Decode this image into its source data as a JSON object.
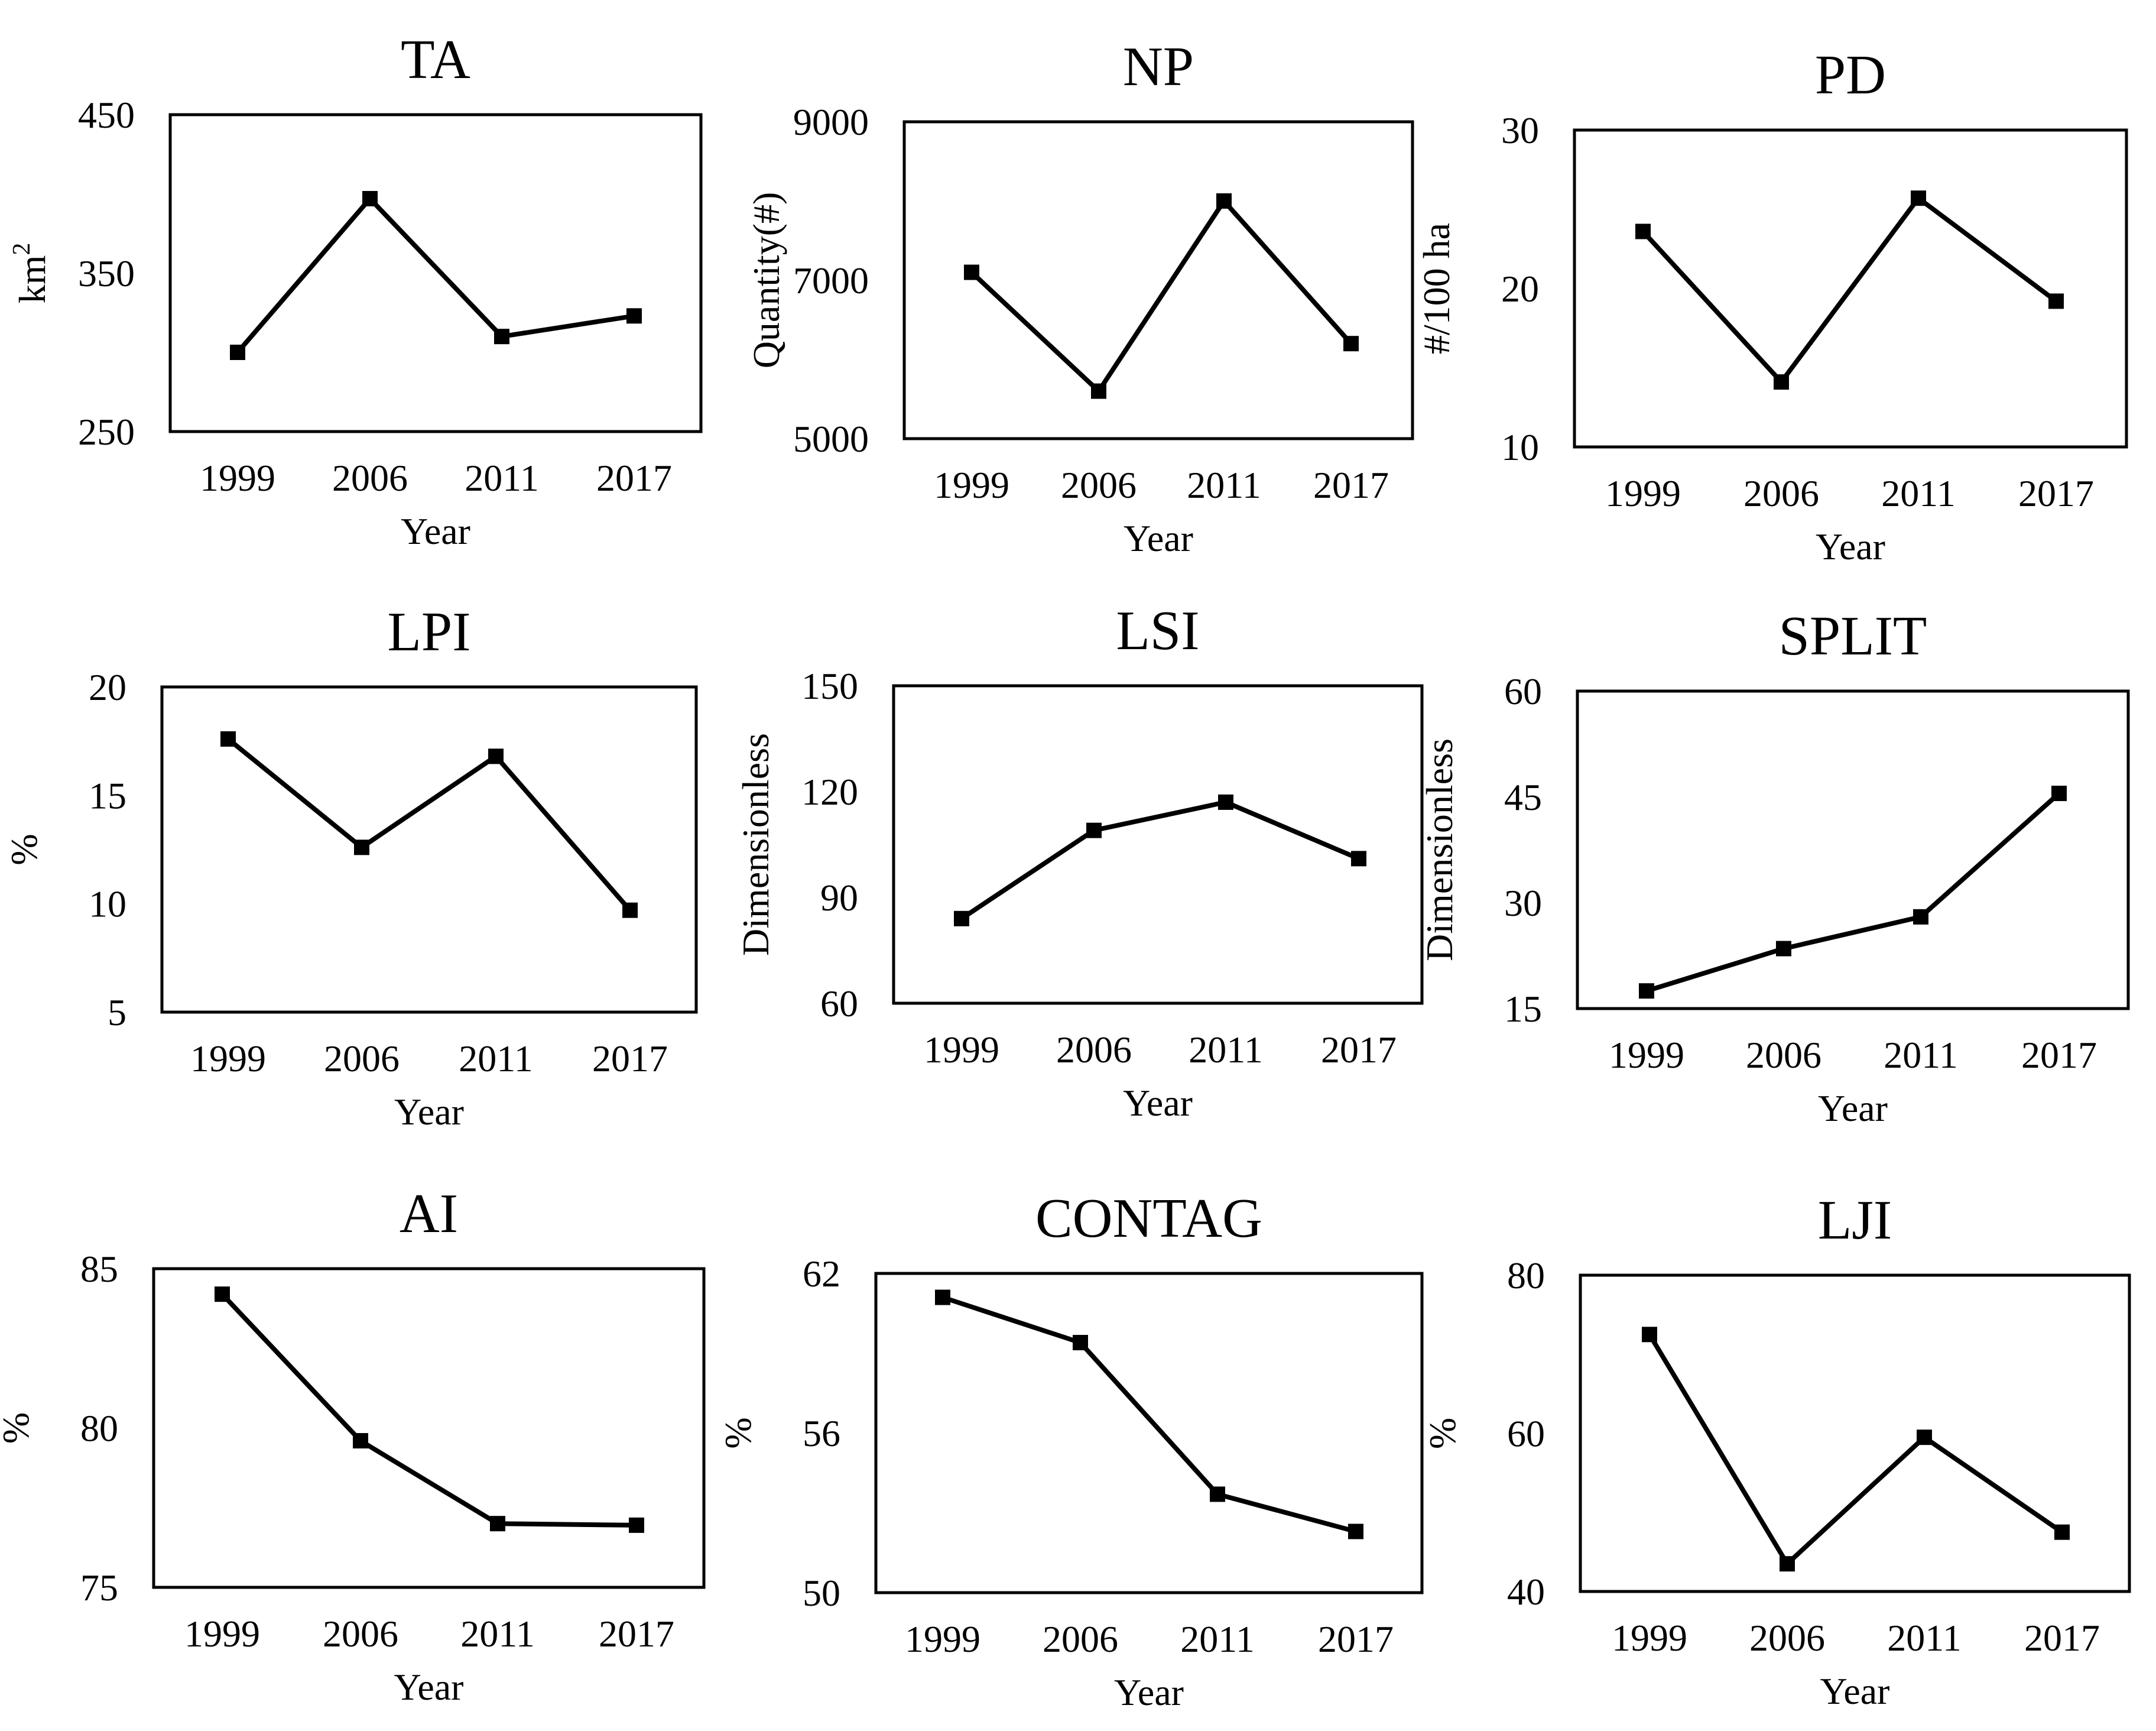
{
  "chart_data": [
    {
      "type": "line",
      "title": "TA",
      "xlabel": "Year",
      "ylabel": "km",
      "ylabel_superscript": "2",
      "categories": [
        "1999",
        "2006",
        "2011",
        "2017"
      ],
      "values": [
        300,
        397,
        310,
        323
      ],
      "ylim": [
        250,
        450
      ],
      "yticks": [
        250,
        350,
        450
      ],
      "grid": false
    },
    {
      "type": "line",
      "title": "NP",
      "xlabel": "Year",
      "ylabel": "Quantity(#)",
      "categories": [
        "1999",
        "2006",
        "2011",
        "2017"
      ],
      "values": [
        7100,
        5600,
        8000,
        6200
      ],
      "ylim": [
        5000,
        9000
      ],
      "yticks": [
        5000,
        7000,
        9000
      ],
      "grid": false
    },
    {
      "type": "line",
      "title": "PD",
      "xlabel": "Year",
      "ylabel": "#/100 ha",
      "categories": [
        "1999",
        "2006",
        "2011",
        "2017"
      ],
      "values": [
        23.6,
        14.1,
        25.7,
        19.2
      ],
      "ylim": [
        10,
        30
      ],
      "yticks": [
        10,
        20,
        30
      ],
      "grid": false
    },
    {
      "type": "line",
      "title": "LPI",
      "xlabel": "Year",
      "ylabel": "%",
      "categories": [
        "1999",
        "2006",
        "2011",
        "2017"
      ],
      "values": [
        17.6,
        12.6,
        16.8,
        9.7
      ],
      "ylim": [
        5,
        20
      ],
      "yticks": [
        5,
        10,
        15,
        20
      ],
      "grid": false
    },
    {
      "type": "line",
      "title": "LSI",
      "xlabel": "Year",
      "ylabel": "Dimensionless",
      "categories": [
        "1999",
        "2006",
        "2011",
        "2017"
      ],
      "values": [
        84,
        109,
        117,
        101
      ],
      "ylim": [
        60,
        150
      ],
      "yticks": [
        60,
        90,
        120,
        150
      ],
      "grid": false
    },
    {
      "type": "line",
      "title": "SPLIT",
      "xlabel": "Year",
      "ylabel": "Dimensionless",
      "categories": [
        "1999",
        "2006",
        "2011",
        "2017"
      ],
      "values": [
        17.5,
        23.5,
        28,
        45.5
      ],
      "ylim": [
        15,
        60
      ],
      "yticks": [
        15,
        30,
        45,
        60
      ],
      "grid": false
    },
    {
      "type": "line",
      "title": "AI",
      "xlabel": "Year",
      "ylabel": "%",
      "categories": [
        "1999",
        "2006",
        "2011",
        "2017"
      ],
      "values": [
        84.2,
        79.6,
        77,
        76.95
      ],
      "ylim": [
        75,
        85
      ],
      "yticks": [
        75,
        80,
        85
      ],
      "grid": false
    },
    {
      "type": "line",
      "title": "CONTAG",
      "xlabel": "Year",
      "ylabel": "%",
      "categories": [
        "1999",
        "2006",
        "2011",
        "2017"
      ],
      "values": [
        61.1,
        59.4,
        53.7,
        52.3
      ],
      "ylim": [
        50,
        62
      ],
      "yticks": [
        50,
        56,
        62
      ],
      "grid": false
    },
    {
      "type": "line",
      "title": "LJI",
      "xlabel": "Year",
      "ylabel": "%",
      "categories": [
        "1999",
        "2006",
        "2011",
        "2017"
      ],
      "values": [
        72.5,
        43.5,
        59.5,
        47.5
      ],
      "ylim": [
        40,
        80
      ],
      "yticks": [
        40,
        60,
        80
      ],
      "grid": false
    }
  ]
}
